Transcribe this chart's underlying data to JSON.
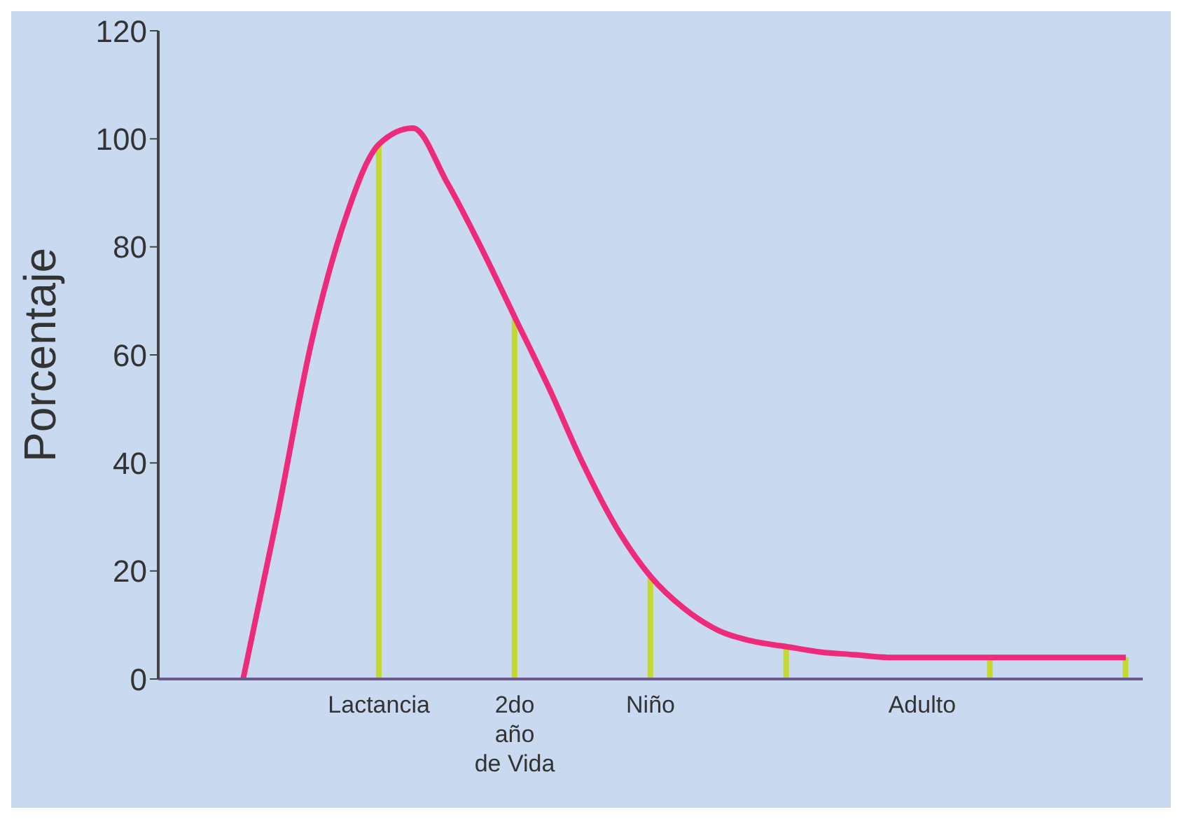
{
  "chart_data": {
    "type": "line",
    "ylabel": "Porcentaje",
    "categories": [
      null,
      null,
      null,
      null,
      null,
      null,
      "Lactancia",
      null,
      null,
      null,
      "2do\naño\nde Vida",
      null,
      null,
      null,
      "Niño",
      null,
      null,
      null,
      null,
      null,
      null,
      null,
      "Adulto",
      null,
      null,
      null,
      null,
      null,
      null
    ],
    "series": [
      {
        "color": "#ee2a7b",
        "values": [
          null,
          null,
          0,
          30,
          62,
          85,
          99,
          102,
          92,
          80,
          67,
          54,
          40,
          28,
          19,
          13,
          9,
          7,
          6,
          5,
          4.5,
          4,
          4,
          4,
          4,
          4,
          4,
          4,
          4
        ]
      },
      {
        "type": "bar",
        "color": "#c5d82e",
        "values": [
          null,
          null,
          null,
          null,
          null,
          null,
          99,
          null,
          null,
          null,
          67,
          null,
          null,
          null,
          19,
          null,
          null,
          null,
          6,
          null,
          null,
          null,
          null,
          null,
          4,
          null,
          null,
          null,
          4
        ]
      }
    ],
    "ylim": [
      0,
      120
    ],
    "yticks": [
      0,
      20,
      40,
      60,
      80,
      100,
      120
    ],
    "grid": false,
    "legend": false,
    "marker": "none"
  }
}
